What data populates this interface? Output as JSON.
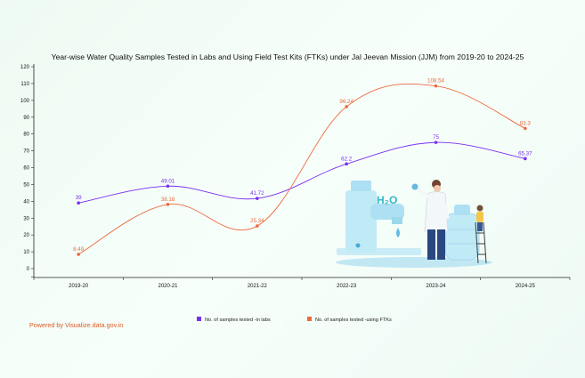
{
  "credit": "Powered by Visualize.data.gov.in",
  "colors": {
    "labs": "#7a2ff0",
    "ftks": "#ec6a3f",
    "axis": "#222222"
  },
  "chart_data": {
    "type": "line",
    "title": "Year-wise Water Quality Samples Tested in Labs and Using Field Test Kits (FTKs) under Jal Jeevan Mission (JJM) from 2019-20 to 2024-25",
    "categories": [
      "2019-20",
      "2020-21",
      "2021-22",
      "2022-23",
      "2023-24",
      "2024-25"
    ],
    "ylim": [
      -5,
      120
    ],
    "yticks": [
      0,
      10,
      20,
      30,
      40,
      50,
      60,
      70,
      80,
      90,
      100,
      110,
      120
    ],
    "grid": false,
    "legend": "bottom-center",
    "series": [
      {
        "name": "No. of samples tested -in labs",
        "key": "labs",
        "values": [
          39,
          49.01,
          41.72,
          62.2,
          75,
          65.37
        ],
        "labels": [
          "39",
          "49.01",
          "41.72",
          "62.2",
          "75",
          "65.37"
        ]
      },
      {
        "name": "No. of samples tested -using FTKs",
        "key": "ftks",
        "values": [
          8.49,
          38.18,
          25.34,
          96.24,
          108.54,
          83.3
        ],
        "labels": [
          "8.49",
          "38.18",
          "25.34",
          "96.24",
          "108.54",
          "83.3"
        ]
      }
    ]
  }
}
